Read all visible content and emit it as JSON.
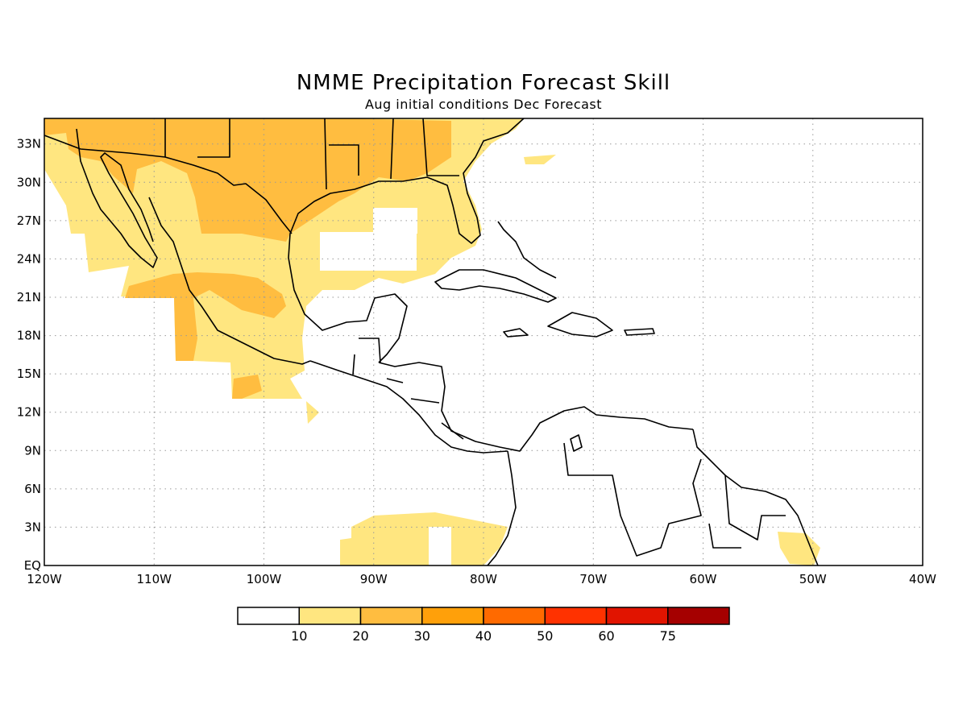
{
  "title": "NMME Precipitation Forecast Skill",
  "subtitle": "Aug initial conditions  Dec Forecast",
  "map": {
    "lon_range": [
      -120,
      -40
    ],
    "lat_range": [
      0,
      35
    ],
    "x_ticks": [
      "120W",
      "110W",
      "100W",
      "90W",
      "80W",
      "70W",
      "60W",
      "50W",
      "40W"
    ],
    "y_ticks": [
      "EQ",
      "3N",
      "6N",
      "9N",
      "12N",
      "15N",
      "18N",
      "21N",
      "24N",
      "27N",
      "30N",
      "33N"
    ],
    "grid": true,
    "coastline_color": "#000000"
  },
  "colorbar": {
    "colors": [
      "#ffffff",
      "#ffe680",
      "#ffbd40",
      "#ffa00a",
      "#ff6a00",
      "#ff3200",
      "#e11400",
      "#a50000"
    ],
    "labels": [
      "10",
      "20",
      "30",
      "40",
      "50",
      "60",
      "75"
    ]
  }
}
